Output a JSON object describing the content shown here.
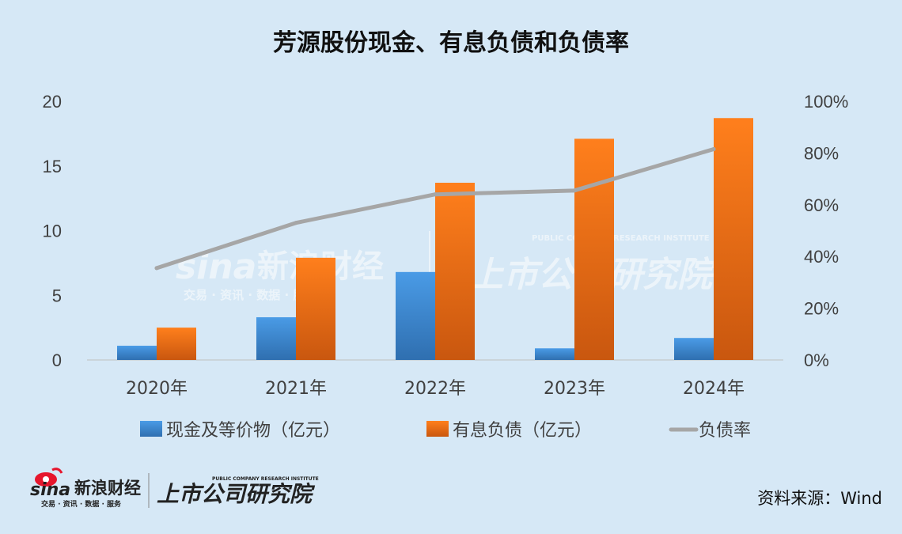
{
  "chart_data": {
    "type": "bar",
    "title": "芳源股份现金、有息负债和负债率",
    "categories": [
      "2020年",
      "2021年",
      "2022年",
      "2023年",
      "2024年"
    ],
    "series": [
      {
        "name": "现金及等价物（亿元）",
        "type": "bar",
        "axis": "left",
        "values": [
          1.1,
          3.3,
          6.8,
          0.9,
          1.7
        ]
      },
      {
        "name": "有息负债（亿元）",
        "type": "bar",
        "axis": "left",
        "values": [
          2.5,
          7.9,
          13.7,
          17.1,
          18.7
        ]
      },
      {
        "name": "负债率",
        "type": "line",
        "axis": "right",
        "values": [
          0.355,
          0.53,
          0.64,
          0.655,
          0.815
        ]
      }
    ],
    "left_ticks": [
      "0",
      "5",
      "10",
      "15",
      "20"
    ],
    "right_ticks": [
      "0%",
      "20%",
      "40%",
      "60%",
      "80%",
      "100%"
    ],
    "ylim": [
      0,
      20
    ],
    "y2lim": [
      0,
      1
    ],
    "grid": false,
    "legend": "bottom",
    "colors": {
      "cash": "#3f8fd9",
      "debt": "#f0771c",
      "ratio": "#a6a6a6",
      "background": "#d6e8f6"
    }
  },
  "watermark": {
    "brand": "sina",
    "brand_cn": "新浪财经",
    "sub": "交易 · 资讯 · 数据 · 服务",
    "institute": "上市公司研究院",
    "institute_en": "PUBLIC COMPANY RESEARCH INSTITUTE"
  },
  "footer": {
    "logo_brand": "sina",
    "logo_cn": "新浪财经",
    "logo_sub": "交易 · 资讯 · 数据 · 服务",
    "logo_institute": "上市公司研究院",
    "logo_institute_en": "PUBLIC COMPANY RESEARCH INSTITUTE",
    "source": "资料来源：Wind"
  },
  "icons": {
    "logo": "sina-eye-logo-icon"
  }
}
